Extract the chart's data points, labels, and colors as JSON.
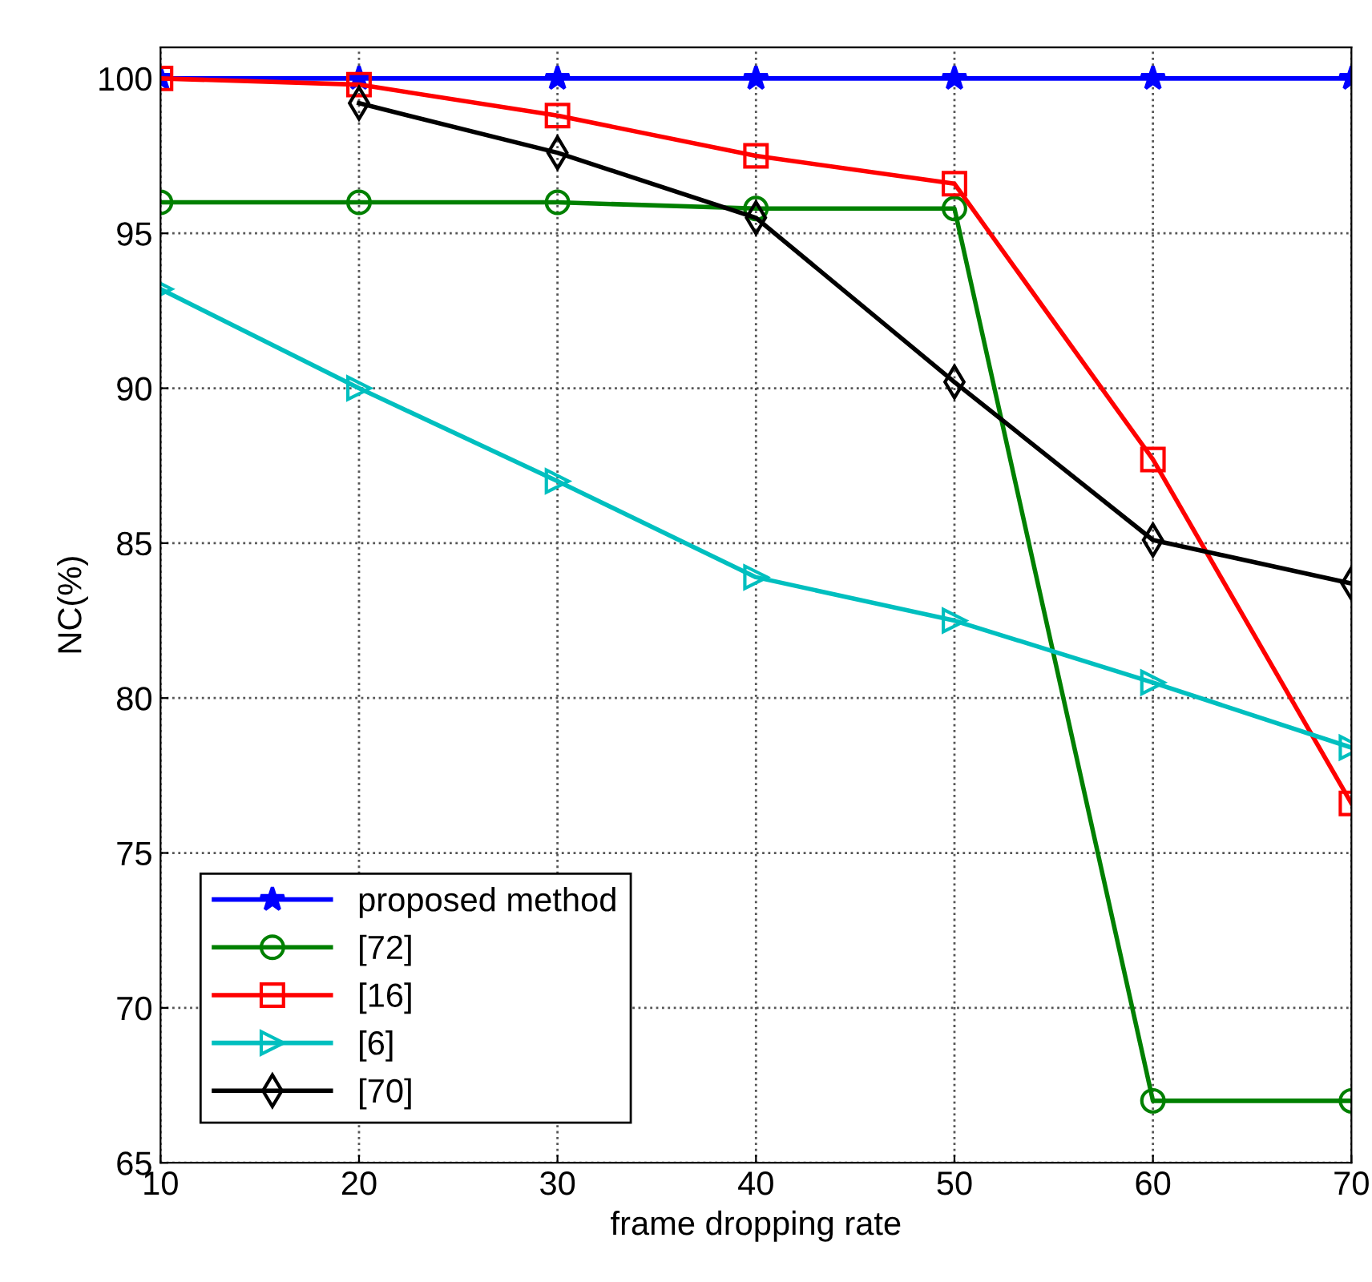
{
  "chart_data": {
    "type": "line",
    "xlabel": "frame dropping rate",
    "ylabel": "NC(%)",
    "x": [
      10,
      20,
      30,
      40,
      50,
      60,
      70
    ],
    "xlim": [
      10,
      70
    ],
    "xticks": [
      10,
      20,
      30,
      40,
      50,
      60,
      70
    ],
    "ylim": [
      65,
      101
    ],
    "yticks": [
      65,
      70,
      75,
      80,
      85,
      90,
      95,
      100
    ],
    "grid": true,
    "legend": "bottom left",
    "series": [
      {
        "name": "proposed method",
        "color": "#0000ff",
        "marker": "star",
        "values": [
          100,
          100,
          100,
          100,
          100,
          100,
          100
        ]
      },
      {
        "name": "[72]",
        "color": "#008000",
        "marker": "circle",
        "values": [
          96,
          96,
          96,
          95.8,
          95.8,
          67,
          67
        ]
      },
      {
        "name": "[16]",
        "color": "#ff0000",
        "marker": "square",
        "values": [
          100,
          99.8,
          98.8,
          97.5,
          96.6,
          87.7,
          76.6
        ]
      },
      {
        "name": "[6]",
        "color": "#00bfbf",
        "marker": "triangle",
        "values": [
          93.2,
          90,
          87,
          83.9,
          82.5,
          80.5,
          78.4
        ]
      },
      {
        "name": "[70]",
        "color": "#000000",
        "marker": "diamond",
        "values": [
          null,
          99.2,
          97.6,
          95.5,
          90.2,
          85.1,
          83.7
        ]
      }
    ]
  }
}
